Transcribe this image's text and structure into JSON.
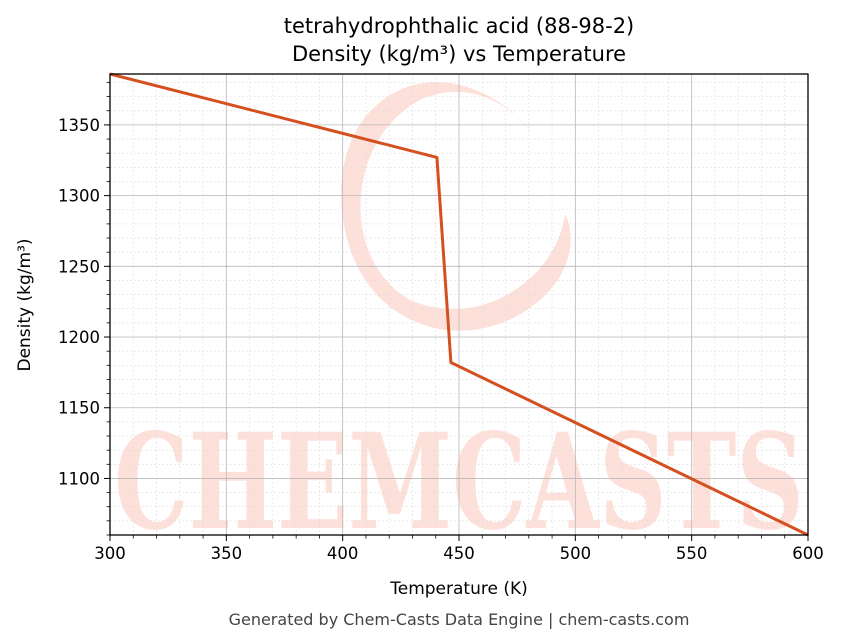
{
  "chart_data": {
    "type": "line",
    "title": "tetrahydrophthalic acid (88-98-2)",
    "subtitle": "Density (kg/m³) vs Temperature",
    "xlabel": "Temperature (K)",
    "ylabel": "Density (kg/m³)",
    "xlim": [
      300,
      600
    ],
    "ylim": [
      1060,
      1386
    ],
    "x_ticks": [
      300,
      350,
      400,
      450,
      500,
      550,
      600
    ],
    "y_ticks": [
      1100,
      1150,
      1200,
      1250,
      1300,
      1350
    ],
    "grid": true,
    "series": [
      {
        "color": "#d4501f",
        "x": [
          300,
          440.5,
          446.5,
          600
        ],
        "y": [
          1386,
          1327,
          1182,
          1060
        ]
      }
    ]
  },
  "watermark": {
    "text": "CHEMCASTS",
    "color": "#fde0da"
  },
  "footer": "Generated by Chem-Casts Data Engine | chem-casts.com"
}
